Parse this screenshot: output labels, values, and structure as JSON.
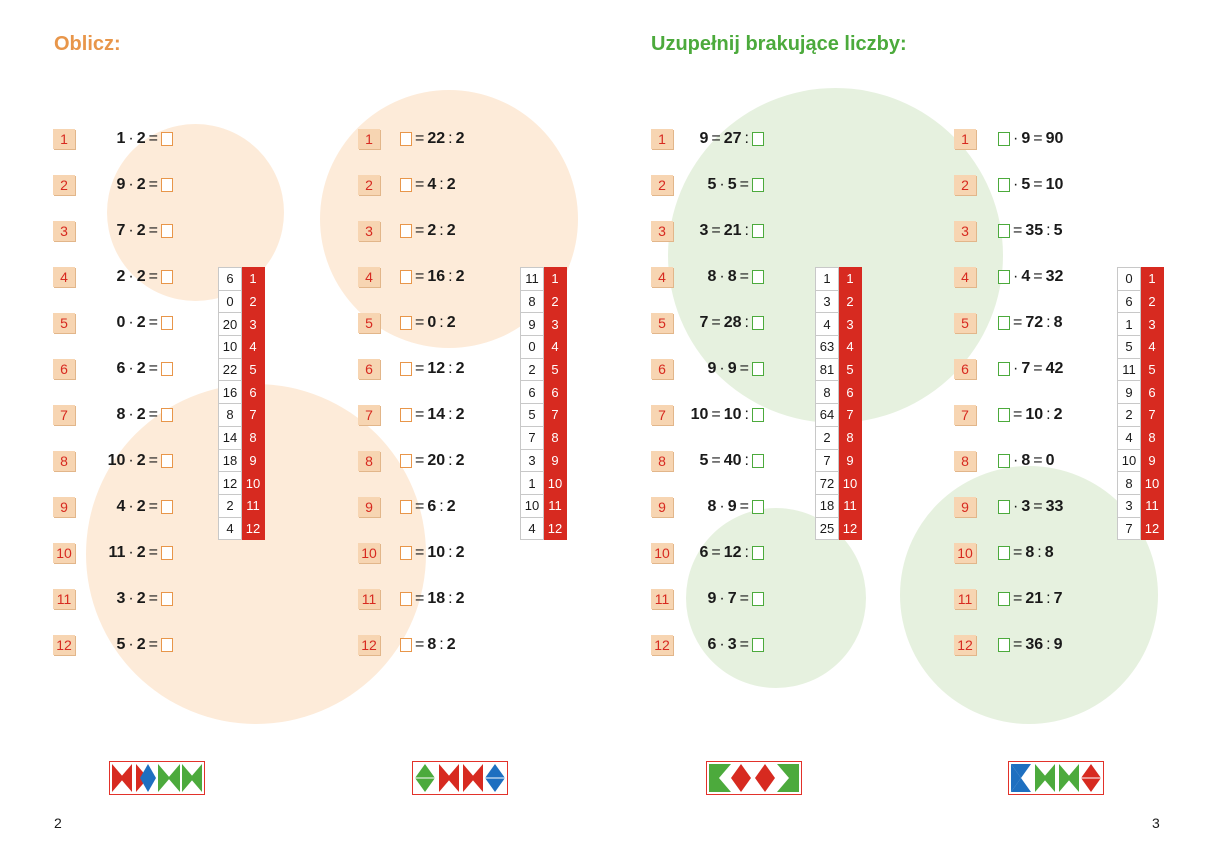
{
  "left_page": {
    "title": "Oblicz:",
    "page_number": "2",
    "col1": [
      {
        "n": "1",
        "a": "1",
        "op": "·",
        "b": "2"
      },
      {
        "n": "2",
        "a": "9",
        "op": "·",
        "b": "2"
      },
      {
        "n": "3",
        "a": "7",
        "op": "·",
        "b": "2"
      },
      {
        "n": "4",
        "a": "2",
        "op": "·",
        "b": "2"
      },
      {
        "n": "5",
        "a": "0",
        "op": "·",
        "b": "2"
      },
      {
        "n": "6",
        "a": "6",
        "op": "·",
        "b": "2"
      },
      {
        "n": "7",
        "a": "8",
        "op": "·",
        "b": "2"
      },
      {
        "n": "8",
        "a": "10",
        "op": "·",
        "b": "2"
      },
      {
        "n": "9",
        "a": "4",
        "op": "·",
        "b": "2"
      },
      {
        "n": "10",
        "a": "11",
        "op": "·",
        "b": "2"
      },
      {
        "n": "11",
        "a": "3",
        "op": "·",
        "b": "2"
      },
      {
        "n": "12",
        "a": "5",
        "op": "·",
        "b": "2"
      }
    ],
    "key1": [
      "6",
      "0",
      "20",
      "10",
      "22",
      "16",
      "8",
      "14",
      "18",
      "12",
      "2",
      "4"
    ],
    "col2": [
      {
        "n": "1",
        "a": "22",
        "op": ":",
        "b": "2"
      },
      {
        "n": "2",
        "a": "4",
        "op": ":",
        "b": "2"
      },
      {
        "n": "3",
        "a": "2",
        "op": ":",
        "b": "2"
      },
      {
        "n": "4",
        "a": "16",
        "op": ":",
        "b": "2"
      },
      {
        "n": "5",
        "a": "0",
        "op": ":",
        "b": "2"
      },
      {
        "n": "6",
        "a": "12",
        "op": ":",
        "b": "2"
      },
      {
        "n": "7",
        "a": "14",
        "op": ":",
        "b": "2"
      },
      {
        "n": "8",
        "a": "20",
        "op": ":",
        "b": "2"
      },
      {
        "n": "9",
        "a": "6",
        "op": ":",
        "b": "2"
      },
      {
        "n": "10",
        "a": "10",
        "op": ":",
        "b": "2"
      },
      {
        "n": "11",
        "a": "18",
        "op": ":",
        "b": "2"
      },
      {
        "n": "12",
        "a": "8",
        "op": ":",
        "b": "2"
      }
    ],
    "key2": [
      "11",
      "8",
      "9",
      "0",
      "2",
      "6",
      "5",
      "7",
      "3",
      "1",
      "10",
      "4"
    ]
  },
  "right_page": {
    "title": "Uzupełnij brakujące liczby:",
    "page_number": "3",
    "col1": [
      {
        "n": "1",
        "a": "9",
        "op": "=",
        "b": "27",
        "op2": ":"
      },
      {
        "n": "2",
        "a": "5",
        "op": "·",
        "b": "5",
        "op2": "="
      },
      {
        "n": "3",
        "a": "3",
        "op": "=",
        "b": "21",
        "op2": ":"
      },
      {
        "n": "4",
        "a": "8",
        "op": "·",
        "b": "8",
        "op2": "="
      },
      {
        "n": "5",
        "a": "7",
        "op": "=",
        "b": "28",
        "op2": ":"
      },
      {
        "n": "6",
        "a": "9",
        "op": "·",
        "b": "9",
        "op2": "="
      },
      {
        "n": "7",
        "a": "10",
        "op": "=",
        "b": "10",
        "op2": ":"
      },
      {
        "n": "8",
        "a": "5",
        "op": "=",
        "b": "40",
        "op2": ":"
      },
      {
        "n": "9",
        "a": "8",
        "op": "·",
        "b": "9",
        "op2": "="
      },
      {
        "n": "10",
        "a": "6",
        "op": "=",
        "b": "12",
        "op2": ":"
      },
      {
        "n": "11",
        "a": "9",
        "op": "·",
        "b": "7",
        "op2": "="
      },
      {
        "n": "12",
        "a": "6",
        "op": "·",
        "b": "3",
        "op2": "="
      }
    ],
    "key1": [
      "1",
      "3",
      "4",
      "63",
      "81",
      "8",
      "64",
      "2",
      "7",
      "72",
      "18",
      "25"
    ],
    "col2": [
      {
        "n": "1",
        "op": "·",
        "a": "9",
        "eq": "=",
        "b": "90"
      },
      {
        "n": "2",
        "op": "·",
        "a": "5",
        "eq": "=",
        "b": "10"
      },
      {
        "n": "3",
        "op": "=",
        "a": "35",
        "eq": ":",
        "b": "5"
      },
      {
        "n": "4",
        "op": "·",
        "a": "4",
        "eq": "=",
        "b": "32"
      },
      {
        "n": "5",
        "op": "=",
        "a": "72",
        "eq": ":",
        "b": "8"
      },
      {
        "n": "6",
        "op": "·",
        "a": "7",
        "eq": "=",
        "b": "42"
      },
      {
        "n": "7",
        "op": "=",
        "a": "10",
        "eq": ":",
        "b": "2"
      },
      {
        "n": "8",
        "op": "·",
        "a": "8",
        "eq": "=",
        "b": "0"
      },
      {
        "n": "9",
        "op": "·",
        "a": "3",
        "eq": "=",
        "b": "33"
      },
      {
        "n": "10",
        "op": "=",
        "a": "8",
        "eq": ":",
        "b": "8"
      },
      {
        "n": "11",
        "op": "=",
        "a": "21",
        "eq": ":",
        "b": "7"
      },
      {
        "n": "12",
        "op": "=",
        "a": "36",
        "eq": ":",
        "b": "9"
      }
    ],
    "key2": [
      "0",
      "6",
      "1",
      "5",
      "11",
      "9",
      "2",
      "4",
      "10",
      "8",
      "3",
      "7"
    ]
  },
  "key_numbers": [
    "1",
    "2",
    "3",
    "4",
    "5",
    "6",
    "7",
    "8",
    "9",
    "10",
    "11",
    "12"
  ],
  "colors": {
    "orange": "#e8964a",
    "green": "#4caa3c",
    "red": "#d72a20",
    "blue": "#1e6fc0"
  }
}
